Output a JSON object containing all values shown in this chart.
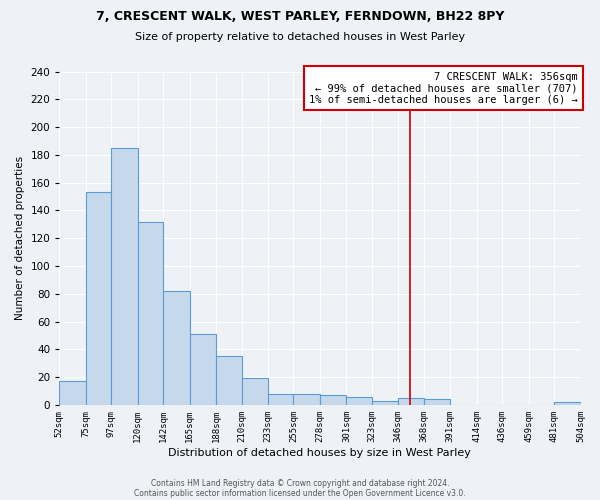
{
  "title1": "7, CRESCENT WALK, WEST PARLEY, FERNDOWN, BH22 8PY",
  "title2": "Size of property relative to detached houses in West Parley",
  "xlabel": "Distribution of detached houses by size in West Parley",
  "ylabel": "Number of detached properties",
  "bin_edges": [
    52,
    75,
    97,
    120,
    142,
    165,
    188,
    210,
    233,
    255,
    278,
    301,
    323,
    346,
    368,
    391,
    414,
    436,
    459,
    481,
    504
  ],
  "counts": [
    17,
    153,
    185,
    132,
    82,
    51,
    35,
    19,
    8,
    8,
    7,
    6,
    3,
    5,
    4,
    0,
    0,
    0,
    0,
    2
  ],
  "bar_facecolor": "#c6d9ec",
  "bar_edgecolor": "#5b9bd5",
  "property_line_x": 356,
  "property_line_color": "#cc0000",
  "annotation_line1": "7 CRESCENT WALK: 356sqm",
  "annotation_line2": "← 99% of detached houses are smaller (707)",
  "annotation_line3": "1% of semi-detached houses are larger (6) →",
  "ylim": [
    0,
    240
  ],
  "yticks": [
    0,
    20,
    40,
    60,
    80,
    100,
    120,
    140,
    160,
    180,
    200,
    220,
    240
  ],
  "footer1": "Contains HM Land Registry data © Crown copyright and database right 2024.",
  "footer2": "Contains public sector information licensed under the Open Government Licence v3.0.",
  "bg_color": "#eef2f7",
  "plot_bg_color": "#eef2f7",
  "grid_color": "#ffffff"
}
